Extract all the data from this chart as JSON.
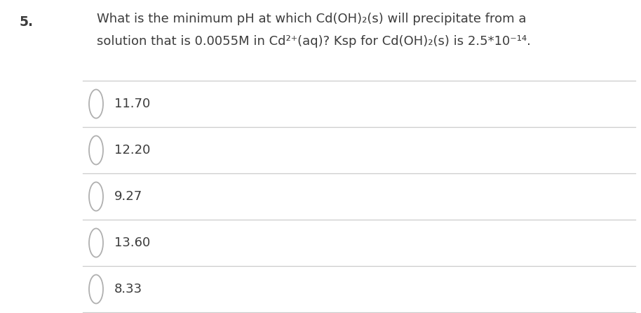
{
  "question_number": "5.",
  "question_line1": "What is the minimum pH at which Cd(OH)₂(s) will precipitate from a",
  "question_line2": "solution that is 0.0055M in Cd²⁺(aq)? Ksp for Cd(OH)₂(s) is 2.5*10⁻¹⁴.",
  "options": [
    "11.70",
    "12.20",
    "9.27",
    "13.60",
    "8.33"
  ],
  "bg_color": "#ffffff",
  "text_color": "#3c3c3c",
  "line_color": "#cccccc",
  "radio_color": "#b0b0b0",
  "question_fontsize": 13.0,
  "option_fontsize": 13.0,
  "number_fontsize": 13.5
}
